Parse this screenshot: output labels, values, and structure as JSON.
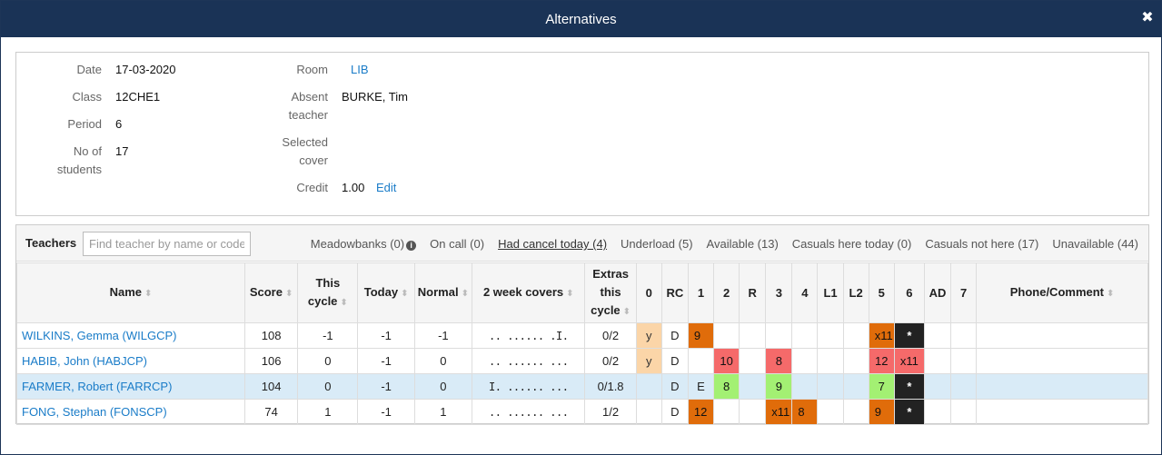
{
  "dialog": {
    "title": "Alternatives"
  },
  "info": {
    "date_label": "Date",
    "date": "17-03-2020",
    "class_label": "Class",
    "class": "12CHE1",
    "period_label": "Period",
    "period": "6",
    "students_label_1": "No of",
    "students_label_2": "students",
    "students": "17",
    "room_label": "Room",
    "room": "LIB",
    "absent_label_1": "Absent",
    "absent_label_2": "teacher",
    "absent": "BURKE, Tim",
    "cover_label_1": "Selected",
    "cover_label_2": "cover",
    "credit_label": "Credit",
    "credit": "1.00",
    "edit": "Edit"
  },
  "teachers": {
    "label": "Teachers",
    "search_placeholder": "Find teacher by name or code",
    "filters": [
      "Meadowbanks (0)",
      "On call (0)",
      "Had cancel today (4)",
      "Underload (5)",
      "Available (13)",
      "Casuals here today (0)",
      "Casuals not here (17)",
      "Unavailable (44)"
    ],
    "active_filter": "Had cancel today (4)",
    "columns": {
      "name": "Name",
      "score": "Score",
      "this_cycle_1": "This",
      "this_cycle_2": "cycle",
      "today": "Today",
      "normal": "Normal",
      "two_week": "2 week covers",
      "extras_1": "Extras",
      "extras_2": "this",
      "extras_3": "cycle",
      "p0": "0",
      "rc": "RC",
      "p1": "1",
      "p2": "2",
      "r": "R",
      "p3": "3",
      "p4": "4",
      "l1": "L1",
      "l2": "L2",
      "p5": "5",
      "p6": "6",
      "ad": "AD",
      "p7": "7",
      "phone": "Phone/Comment"
    },
    "rows": [
      {
        "name": "WILKINS, Gemma (WILGCP)",
        "score": "108",
        "this_cycle": "-1",
        "today": "-1",
        "normal": "-1",
        "two_week": ".. ...... .I.",
        "extras": "0/2",
        "p0": "y",
        "rc": "D",
        "p1": "9",
        "p2": "",
        "r": "",
        "p3": "",
        "p4": "",
        "l1": "",
        "l2": "",
        "p5": "x11",
        "p6": "*",
        "ad": "",
        "p7": "",
        "phone": ""
      },
      {
        "name": "HABIB, John (HABJCP)",
        "score": "106",
        "this_cycle": "0",
        "today": "-1",
        "normal": "0",
        "two_week": ".. ...... ...",
        "extras": "0/2",
        "p0": "y",
        "rc": "D",
        "p1": "",
        "p2": "10",
        "r": "",
        "p3": "8",
        "p4": "",
        "l1": "",
        "l2": "",
        "p5": "12",
        "p6": "x11",
        "ad": "",
        "p7": "",
        "phone": ""
      },
      {
        "name": "FARMER, Robert (FARRCP)",
        "score": "104",
        "this_cycle": "0",
        "today": "-1",
        "normal": "0",
        "two_week": "I. ...... ...",
        "extras": "0/1.8",
        "p0": "",
        "rc": "D",
        "p1": "E",
        "p2": "8",
        "r": "",
        "p3": "9",
        "p4": "",
        "l1": "",
        "l2": "",
        "p5": "7",
        "p6": "*",
        "ad": "",
        "p7": "",
        "phone": ""
      },
      {
        "name": "FONG, Stephan (FONSCP)",
        "score": "74",
        "this_cycle": "1",
        "today": "-1",
        "normal": "1",
        "two_week": ".. ...... ...",
        "extras": "1/2",
        "p0": "",
        "rc": "D",
        "p1": "12",
        "p2": "",
        "r": "",
        "p3": "x11",
        "p4": "8",
        "l1": "",
        "l2": "",
        "p5": "9",
        "p6": "*",
        "ad": "",
        "p7": "",
        "phone": ""
      }
    ]
  },
  "colors": {
    "header": "#1a3356",
    "orange": "#e06c0a",
    "red": "#f56a6a",
    "green": "#a3f073",
    "black": "#222222",
    "peach": "#fbd5a8",
    "link": "#1a7cc8"
  }
}
